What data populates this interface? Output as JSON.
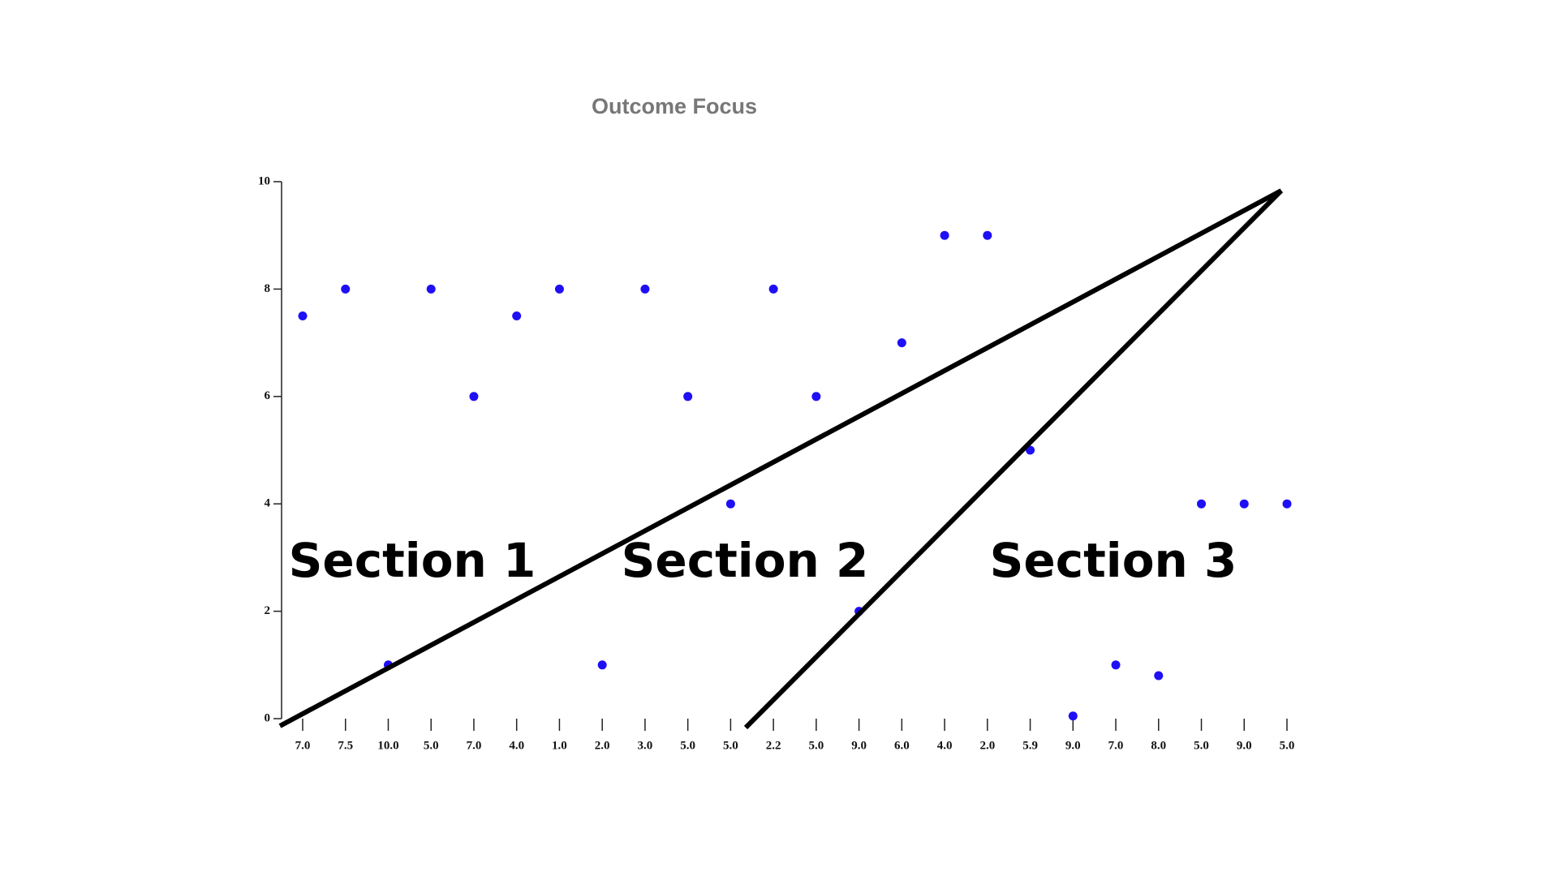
{
  "chart_data": {
    "type": "scatter",
    "title": "Outcome Focus",
    "categories": [
      "7.0",
      "7.5",
      "10.0",
      "5.0",
      "7.0",
      "4.0",
      "1.0",
      "2.0",
      "3.0",
      "5.0",
      "5.0",
      "2.2",
      "5.0",
      "9.0",
      "6.0",
      "4.0",
      "2.0",
      "5.9",
      "9.0",
      "7.0",
      "8.0",
      "5.0",
      "9.0",
      "5.0"
    ],
    "values": [
      7.5,
      8,
      1,
      8,
      6,
      7.5,
      8,
      1,
      8,
      6,
      4,
      8,
      6,
      2,
      7,
      9,
      9,
      5,
      0.05,
      1,
      0.8,
      4,
      4,
      4
    ],
    "color": "#1f0ff5",
    "ylim": [
      0,
      10
    ],
    "yticks": [
      0,
      2,
      4,
      6,
      8,
      10
    ],
    "grid": false,
    "annotations": [
      "Section 1",
      "Section 2",
      "Section 3"
    ]
  }
}
